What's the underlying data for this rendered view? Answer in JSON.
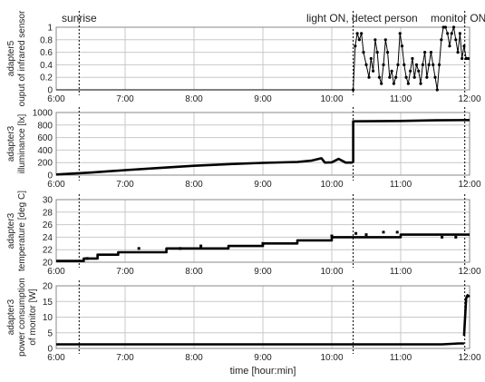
{
  "chart_data": {
    "type": "line",
    "x_axis": {
      "label": "time [hour:min]",
      "ticks": [
        "6:00",
        "7:00",
        "8:00",
        "9:00",
        "10:00",
        "11:00",
        "12:00"
      ],
      "range_hours": [
        6,
        12
      ]
    },
    "events": [
      {
        "label": "sunrise",
        "time": 6.333
      },
      {
        "label": "light ON, detect person",
        "time": 10.31
      },
      {
        "label": "monitor ON",
        "time": 11.93
      }
    ],
    "panels": [
      {
        "ylabel_lines": [
          "adapter5",
          "ouput of infrared sensor"
        ],
        "ylim": [
          0,
          1
        ],
        "yticks": [
          0,
          0.2,
          0.4,
          0.6,
          0.8,
          1
        ],
        "ytick_labels": [
          "0",
          "0.2",
          "0.4",
          "0.6",
          "0.8",
          "1"
        ],
        "series": {
          "segments": [
            {
              "t": [
                6.0,
                10.31
              ],
              "y": [
                0,
                0
              ]
            },
            {
              "t": [
                10.31,
                10.34,
                10.37,
                10.4,
                10.43,
                10.46,
                10.5,
                10.54,
                10.57,
                10.6,
                10.63,
                10.66,
                10.69,
                10.72,
                10.75,
                10.78,
                10.81,
                10.84,
                10.87,
                10.9,
                10.93,
                10.96,
                10.99,
                11.02,
                11.05,
                11.08,
                11.11,
                11.14,
                11.17,
                11.2,
                11.23,
                11.26,
                11.29,
                11.32,
                11.35,
                11.38,
                11.41,
                11.44,
                11.47,
                11.5,
                11.53,
                11.56,
                11.59,
                11.62,
                11.65,
                11.68,
                11.71,
                11.74,
                11.77,
                11.8,
                11.83,
                11.86,
                11.89,
                11.92,
                11.95,
                11.98
              ],
              "y": [
                0.0,
                0.7,
                0.9,
                0.8,
                0.9,
                0.6,
                0.4,
                0.2,
                0.5,
                0.3,
                0.8,
                0.6,
                0.2,
                0.1,
                0.4,
                0.8,
                0.6,
                0.2,
                0.3,
                0.1,
                0.2,
                0.4,
                0.9,
                0.7,
                0.4,
                0.2,
                0.1,
                0.3,
                0.5,
                0.2,
                0.4,
                0.3,
                0.1,
                0.4,
                0.6,
                0.2,
                0.4,
                0.6,
                0.4,
                0.2,
                0.0,
                0.4,
                0.8,
                1.0,
                1.0,
                0.9,
                0.7,
                0.9,
                1.0,
                0.8,
                0.6,
                0.9,
                0.5,
                0.7,
                0.5,
                0.5
              ]
            }
          ]
        }
      },
      {
        "ylabel_lines": [
          "adapter3",
          "illuminance [lx]"
        ],
        "ylim": [
          0,
          1000
        ],
        "yticks": [
          0,
          200,
          400,
          600,
          800,
          1000
        ],
        "ytick_labels": [
          "0",
          "200",
          "400",
          "600",
          "800",
          "1000"
        ],
        "series": {
          "segments": [
            {
              "t": [
                6.0,
                6.5,
                7.0,
                7.5,
                8.0,
                8.5,
                9.0,
                9.5,
                9.7,
                9.85,
                9.9,
                10.0,
                10.1,
                10.2,
                10.3
              ],
              "y": [
                10,
                40,
                80,
                115,
                150,
                175,
                195,
                210,
                230,
                270,
                200,
                205,
                260,
                200,
                200
              ]
            },
            {
              "t": [
                10.31,
                10.31,
                11.0,
                11.5,
                12.0
              ],
              "y": [
                200,
                860,
                865,
                875,
                880
              ]
            }
          ]
        }
      },
      {
        "ylabel_lines": [
          "adapter3",
          "temperature [deg C]"
        ],
        "ylim": [
          20,
          30
        ],
        "yticks": [
          20,
          22,
          24,
          26,
          28,
          30
        ],
        "ytick_labels": [
          "20",
          "22",
          "24",
          "26",
          "28",
          "30"
        ],
        "series": {
          "segments": [
            {
              "t": [
                6.0,
                6.4,
                6.4,
                6.6,
                6.6,
                6.9,
                6.9,
                7.6,
                7.6,
                8.5,
                8.5,
                9.0,
                9.0,
                9.5,
                9.5,
                10.0,
                10.0,
                11.0,
                11.0,
                12.0
              ],
              "y": [
                20.2,
                20.2,
                20.6,
                20.6,
                21.2,
                21.2,
                21.6,
                21.6,
                22.2,
                22.2,
                22.6,
                22.6,
                23.0,
                23.0,
                23.5,
                23.5,
                24.0,
                24.0,
                24.4,
                24.4
              ]
            }
          ]
        }
      },
      {
        "ylabel_lines": [
          "adapter3",
          "power consumption",
          "of monitor [W]"
        ],
        "ylim": [
          0,
          20
        ],
        "yticks": [
          0,
          5,
          10,
          15,
          20
        ],
        "ytick_labels": [
          "0",
          "5",
          "10",
          "15",
          "20"
        ],
        "series": {
          "segments": [
            {
              "t": [
                6.0,
                7.0,
                8.0,
                9.0,
                10.0,
                11.0,
                11.6,
                11.85,
                11.92
              ],
              "y": [
                1.3,
                1.3,
                1.3,
                1.3,
                1.3,
                1.3,
                1.3,
                1.6,
                1.6
              ]
            },
            {
              "t": [
                11.92,
                11.95,
                11.97,
                12.0
              ],
              "y": [
                4.0,
                16.0,
                17.0,
                16.5
              ]
            }
          ]
        }
      }
    ]
  }
}
